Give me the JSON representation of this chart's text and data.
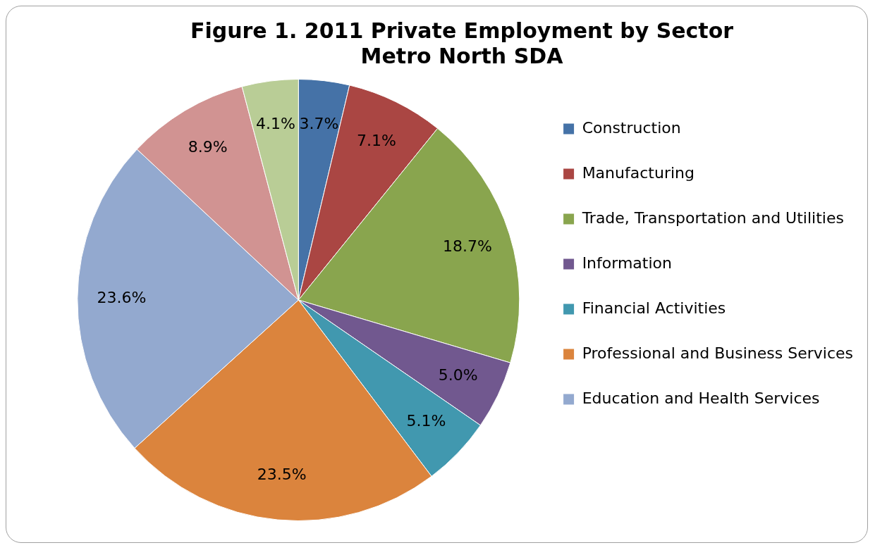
{
  "chart_data": {
    "type": "pie",
    "title": "Figure 1. 2011 Private Employment by Sector",
    "subtitle": "Metro North SDA",
    "categories": [
      "Construction",
      "Manufacturing",
      "Trade, Transportation and Utilities",
      "Information",
      "Financial Activities",
      "Professional and Business Services",
      "Education and Health Services",
      null,
      null
    ],
    "values": [
      3.7,
      7.1,
      18.7,
      5.0,
      5.1,
      23.5,
      23.6,
      8.9,
      4.1
    ],
    "value_labels": [
      "3.7%",
      "7.1%",
      "18.7%",
      "5.0%",
      "5.1%",
      "23.5%",
      "23.6%",
      "8.9%",
      "4.1%"
    ],
    "colors": [
      "#4572a7",
      "#aa4643",
      "#89a54e",
      "#71588f",
      "#4198af",
      "#db843d",
      "#93a9cf",
      "#d19392",
      "#b9cd96"
    ],
    "legend": "right"
  }
}
